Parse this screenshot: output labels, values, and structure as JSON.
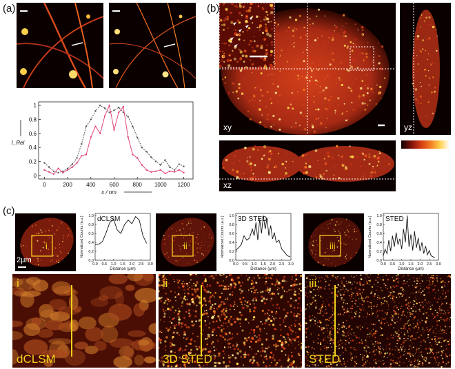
{
  "labels": {
    "a": "(a)",
    "b": "(b)",
    "c": "(c)"
  },
  "panel_b": {
    "xy": "xy",
    "yz": "yz",
    "xz": "xz"
  },
  "panel_c": {
    "scale_bar": "2μm",
    "roman": [
      "i",
      "ii",
      "iii"
    ],
    "bottom_titles": [
      "dCLSM",
      "3D STED",
      "STED"
    ]
  },
  "chart_data": [
    {
      "type": "line",
      "xlabel": "x / nm",
      "ylabel": "I_Rel",
      "xlim": [
        -50,
        1280
      ],
      "ylim": [
        -0.05,
        1.05
      ],
      "xticks": [
        0,
        200,
        400,
        600,
        800,
        1000,
        1200
      ],
      "yticks": [
        0,
        0.2,
        0.4,
        0.6,
        0.8,
        1
      ],
      "series": [
        {
          "color": "#555555",
          "style": "dashed",
          "x": [
            0,
            40,
            80,
            120,
            160,
            200,
            240,
            280,
            320,
            360,
            400,
            440,
            480,
            520,
            560,
            600,
            640,
            680,
            720,
            760,
            800,
            840,
            880,
            920,
            960,
            1000,
            1040,
            1080,
            1120,
            1160,
            1200
          ],
          "y": [
            0.18,
            0.12,
            0.06,
            0.04,
            0.06,
            0.1,
            0.16,
            0.25,
            0.45,
            0.7,
            0.8,
            0.92,
            1.0,
            0.96,
            0.9,
            0.93,
            0.97,
            0.9,
            0.84,
            0.7,
            0.54,
            0.4,
            0.34,
            0.26,
            0.2,
            0.15,
            0.22,
            0.12,
            0.08,
            0.16,
            0.13
          ]
        },
        {
          "color": "#e0457b",
          "style": "solid",
          "x": [
            0,
            40,
            80,
            120,
            160,
            200,
            240,
            280,
            320,
            360,
            400,
            440,
            480,
            520,
            560,
            600,
            640,
            680,
            720,
            760,
            800,
            840,
            880,
            920,
            960,
            1000,
            1040,
            1080,
            1120,
            1160,
            1200
          ],
          "y": [
            0.08,
            0.05,
            0.02,
            0.1,
            0.04,
            0.08,
            0.12,
            0.18,
            0.28,
            0.3,
            0.55,
            0.7,
            0.6,
            0.85,
            1.0,
            0.65,
            0.9,
            0.98,
            0.55,
            0.3,
            0.25,
            0.15,
            0.08,
            0.05,
            0.06,
            0.08,
            0.03,
            0.06,
            0.05,
            0.08,
            0.04
          ]
        }
      ]
    },
    {
      "type": "line",
      "title": "dCLSM",
      "xlabel": "Distance (μm)",
      "ylabel": "Normalized Counts (a.u.)",
      "xlim": [
        0,
        3.0
      ],
      "ylim": [
        0,
        1.05
      ],
      "xticks": [
        0.0,
        0.5,
        1.0,
        1.5,
        2.0,
        2.5,
        3.0
      ],
      "yticks": [
        0.0,
        0.2,
        0.4,
        0.6,
        0.8,
        1.0
      ],
      "x": [
        0.0,
        0.2,
        0.4,
        0.6,
        0.8,
        1.0,
        1.2,
        1.4,
        1.6,
        1.8,
        2.0,
        2.2,
        2.4,
        2.6,
        2.8
      ],
      "y": [
        0.35,
        0.36,
        0.42,
        0.62,
        0.85,
        0.92,
        0.68,
        0.6,
        0.8,
        0.9,
        0.82,
        0.98,
        0.9,
        0.55,
        0.38
      ]
    },
    {
      "type": "line",
      "title": "3D STED",
      "xlabel": "Distance (μm)",
      "ylabel": "Normalized Counts (a.u.)",
      "xlim": [
        0,
        3.0
      ],
      "ylim": [
        0,
        1.05
      ],
      "xticks": [
        0.0,
        0.5,
        1.0,
        1.5,
        2.0,
        2.5,
        3.0
      ],
      "yticks": [
        0.0,
        0.2,
        0.4,
        0.6,
        0.8,
        1.0
      ],
      "x": [
        0.0,
        0.15,
        0.3,
        0.45,
        0.6,
        0.75,
        0.9,
        1.0,
        1.1,
        1.2,
        1.3,
        1.4,
        1.5,
        1.6,
        1.7,
        1.8,
        1.9,
        2.0,
        2.1,
        2.2,
        2.35,
        2.5,
        2.65,
        2.8,
        2.95
      ],
      "y": [
        0.22,
        0.28,
        0.35,
        0.55,
        0.45,
        0.5,
        0.7,
        0.55,
        0.85,
        0.45,
        0.92,
        0.6,
        1.0,
        0.7,
        0.95,
        0.55,
        0.78,
        0.48,
        0.62,
        0.4,
        0.45,
        0.25,
        0.18,
        0.1,
        0.08
      ]
    },
    {
      "type": "line",
      "title": "STED",
      "xlabel": "Distance (μm)",
      "ylabel": "Normalized Counts (a.u.)",
      "xlim": [
        0,
        3.0
      ],
      "ylim": [
        0,
        1.05
      ],
      "xticks": [
        0.0,
        0.5,
        1.0,
        1.5,
        2.0,
        2.5,
        3.0
      ],
      "yticks": [
        0.0,
        0.2,
        0.4,
        0.6,
        0.8,
        1.0
      ],
      "x": [
        0.0,
        0.1,
        0.2,
        0.3,
        0.4,
        0.5,
        0.6,
        0.7,
        0.8,
        0.9,
        1.0,
        1.1,
        1.2,
        1.3,
        1.4,
        1.5,
        1.6,
        1.7,
        1.8,
        1.9,
        2.0,
        2.1,
        2.2,
        2.3,
        2.4,
        2.5,
        2.6,
        2.7,
        2.8
      ],
      "y": [
        0.1,
        0.25,
        0.15,
        0.45,
        0.2,
        0.55,
        0.3,
        0.62,
        0.35,
        0.48,
        0.25,
        0.7,
        0.4,
        1.0,
        0.3,
        0.58,
        0.22,
        0.65,
        0.28,
        0.5,
        0.2,
        0.4,
        0.15,
        0.32,
        0.12,
        0.22,
        0.1,
        0.08,
        0.05
      ]
    }
  ]
}
